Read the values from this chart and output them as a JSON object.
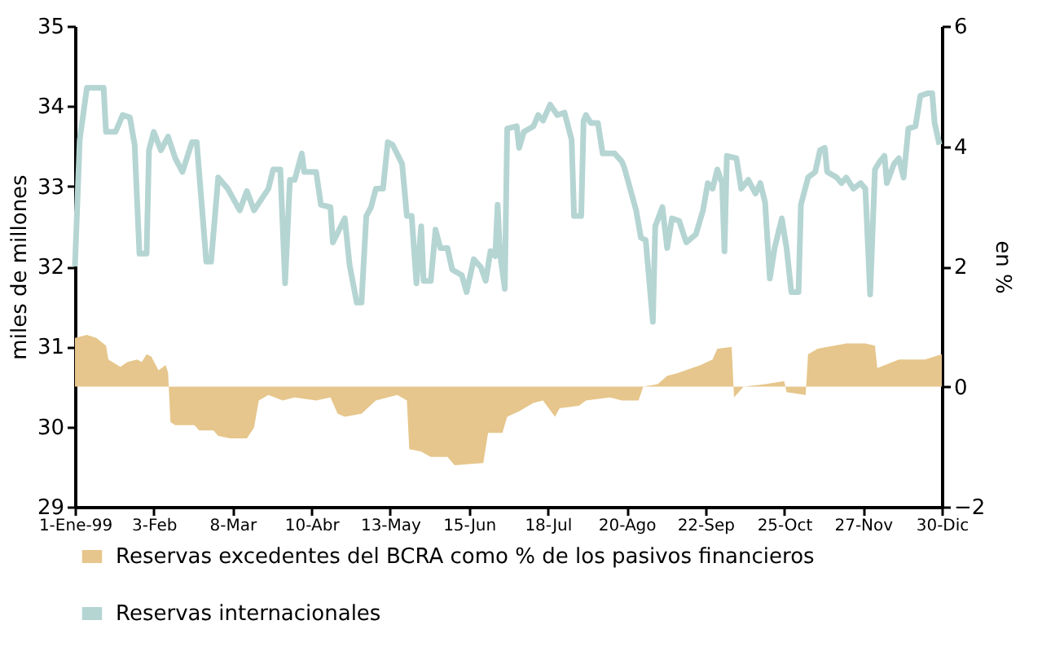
{
  "chart_data": {
    "type": "line",
    "ylabel": "miles de millones",
    "y2label": "en %",
    "legend": "bottom",
    "xlim": [
      "1999-01-01",
      "1999-12-30"
    ],
    "xticks": [
      {
        "value": "1999-01-01",
        "label": "1-Ene-99"
      },
      {
        "value": "1999-02-03",
        "label": "3-Feb"
      },
      {
        "value": "1999-03-08",
        "label": "8-Mar"
      },
      {
        "value": "1999-04-10",
        "label": "10-Abr"
      },
      {
        "value": "1999-05-13",
        "label": "13-May"
      },
      {
        "value": "1999-06-15",
        "label": "15-Jun"
      },
      {
        "value": "1999-07-18",
        "label": "18-Jul"
      },
      {
        "value": "1999-08-20",
        "label": "20-Ago"
      },
      {
        "value": "1999-09-22",
        "label": "22-Sep"
      },
      {
        "value": "1999-10-25",
        "label": "25-Oct"
      },
      {
        "value": "1999-11-27",
        "label": "27-Nov"
      },
      {
        "value": "1999-12-30",
        "label": "30-Dic"
      }
    ],
    "ylim": [
      29,
      35
    ],
    "yticks": [
      29,
      30,
      31,
      32,
      33,
      34,
      35
    ],
    "y2lim": [
      -2,
      6
    ],
    "y2ticks": [
      -2,
      0,
      2,
      4,
      6
    ],
    "series": [
      {
        "name": "Reservas excedentes del BCRA como % de los pasivos financieros",
        "type": "area",
        "axis": "y2",
        "color": "#e6c68c",
        "x": [
          "1999-01-01",
          "1999-01-06",
          "1999-01-10",
          "1999-01-14",
          "1999-01-15",
          "1999-01-20",
          "1999-01-23",
          "1999-01-27",
          "1999-01-29",
          "1999-01-31",
          "1999-02-02",
          "1999-02-05",
          "1999-02-08",
          "1999-02-09",
          "1999-02-10",
          "1999-02-12",
          "1999-02-20",
          "1999-02-22",
          "1999-02-28",
          "1999-03-02",
          "1999-03-07",
          "1999-03-14",
          "1999-03-17",
          "1999-03-19",
          "1999-03-23",
          "1999-03-29",
          "1999-04-03",
          "1999-04-12",
          "1999-04-18",
          "1999-04-21",
          "1999-04-24",
          "1999-05-01",
          "1999-05-07",
          "1999-05-16",
          "1999-05-20",
          "1999-05-21",
          "1999-05-26",
          "1999-05-30",
          "1999-06-06",
          "1999-06-09",
          "1999-06-21",
          "1999-06-23",
          "1999-06-29",
          "1999-07-01",
          "1999-07-06",
          "1999-07-12",
          "1999-07-16",
          "1999-07-21",
          "1999-07-23",
          "1999-07-31",
          "1999-08-03",
          "1999-08-13",
          "1999-08-18",
          "1999-08-25",
          "1999-08-27",
          "1999-09-02",
          "1999-09-06",
          "1999-09-10",
          "1999-09-20",
          "1999-09-25",
          "1999-09-27",
          "1999-10-03",
          "1999-10-04",
          "1999-10-08",
          "1999-10-17",
          "1999-10-25",
          "1999-10-26",
          "1999-11-03",
          "1999-11-04",
          "1999-11-08",
          "1999-11-20",
          "1999-11-28",
          "1999-12-02",
          "1999-12-03",
          "1999-12-12",
          "1999-12-23",
          "1999-12-30"
        ],
        "values": [
          0.81,
          0.86,
          0.81,
          0.68,
          0.45,
          0.33,
          0.41,
          0.45,
          0.41,
          0.54,
          0.5,
          0.27,
          0.36,
          0.23,
          -0.59,
          -0.64,
          -0.64,
          -0.73,
          -0.73,
          -0.82,
          -0.86,
          -0.86,
          -0.68,
          -0.23,
          -0.14,
          -0.23,
          -0.18,
          -0.23,
          -0.18,
          -0.45,
          -0.5,
          -0.45,
          -0.23,
          -0.14,
          -0.23,
          -1.04,
          -1.08,
          -1.17,
          -1.17,
          -1.31,
          -1.27,
          -0.77,
          -0.77,
          -0.5,
          -0.41,
          -0.27,
          -0.23,
          -0.5,
          -0.36,
          -0.32,
          -0.23,
          -0.18,
          -0.23,
          -0.23,
          0.0,
          0.04,
          0.18,
          0.22,
          0.36,
          0.45,
          0.63,
          0.66,
          -0.18,
          0.0,
          0.04,
          0.09,
          -0.09,
          -0.14,
          0.54,
          0.63,
          0.72,
          0.72,
          0.68,
          0.31,
          0.45,
          0.45,
          0.54
        ]
      },
      {
        "name": "Reservas internacionales",
        "type": "line",
        "color": "#b5d5d3",
        "x": [
          "1999-01-01",
          "1999-01-03",
          "1999-01-06",
          "1999-01-13",
          "1999-01-14",
          "1999-01-18",
          "1999-01-21",
          "1999-01-24",
          "1999-01-26",
          "1999-01-28",
          "1999-01-31",
          "1999-02-01",
          "1999-02-03",
          "1999-02-06",
          "1999-02-09",
          "1999-02-12",
          "1999-02-15",
          "1999-02-19",
          "1999-02-21",
          "1999-02-25",
          "1999-02-27",
          "1999-03-02",
          "1999-03-06",
          "1999-03-11",
          "1999-03-14",
          "1999-03-17",
          "1999-03-23",
          "1999-03-25",
          "1999-03-28",
          "1999-03-30",
          "1999-04-01",
          "1999-04-03",
          "1999-04-06",
          "1999-04-07",
          "1999-04-12",
          "1999-04-14",
          "1999-04-18",
          "1999-04-19",
          "1999-04-24",
          "1999-04-26",
          "1999-04-29",
          "1999-05-01",
          "1999-05-03",
          "1999-05-05",
          "1999-05-07",
          "1999-05-10",
          "1999-05-12",
          "1999-05-14",
          "1999-05-18",
          "1999-05-20",
          "1999-05-22",
          "1999-05-24",
          "1999-05-26",
          "1999-05-27",
          "1999-05-30",
          "1999-06-01",
          "1999-06-03",
          "1999-06-06",
          "1999-06-08",
          "1999-06-12",
          "1999-06-14",
          "1999-06-17",
          "1999-06-20",
          "1999-06-22",
          "1999-06-24",
          "1999-06-26",
          "1999-06-27",
          "1999-06-28",
          "1999-06-30",
          "1999-07-01",
          "1999-07-05",
          "1999-07-06",
          "1999-07-08",
          "1999-07-12",
          "1999-07-14",
          "1999-07-16",
          "1999-07-19",
          "1999-07-22",
          "1999-07-25",
          "1999-07-28",
          "1999-07-29",
          "1999-08-01",
          "1999-08-02",
          "1999-08-03",
          "1999-08-05",
          "1999-08-08",
          "1999-08-10",
          "1999-08-15",
          "1999-08-18",
          "1999-08-19",
          "1999-08-24",
          "1999-08-26",
          "1999-08-28",
          "1999-08-31",
          "1999-09-01",
          "1999-09-04",
          "1999-09-06",
          "1999-09-08",
          "1999-09-11",
          "1999-09-14",
          "1999-09-18",
          "1999-09-21",
          "1999-09-23",
          "1999-09-25",
          "1999-09-27",
          "1999-09-29",
          "1999-09-30",
          "1999-10-01",
          "1999-10-05",
          "1999-10-07",
          "1999-10-10",
          "1999-10-13",
          "1999-10-15",
          "1999-10-17",
          "1999-10-19",
          "1999-10-21",
          "1999-10-24",
          "1999-10-26",
          "1999-10-28",
          "1999-10-31",
          "1999-11-01",
          "1999-11-04",
          "1999-11-07",
          "1999-11-09",
          "1999-11-11",
          "1999-11-12",
          "1999-11-16",
          "1999-11-18",
          "1999-11-20",
          "1999-11-23",
          "1999-11-26",
          "1999-11-28",
          "1999-11-30",
          "1999-12-02",
          "1999-12-04",
          "1999-12-06",
          "1999-12-07",
          "1999-12-10",
          "1999-12-12",
          "1999-12-14",
          "1999-12-16",
          "1999-12-19",
          "1999-12-21",
          "1999-12-24",
          "1999-12-26",
          "1999-12-27",
          "1999-12-29"
        ],
        "values": [
          32.0,
          33.58,
          34.23,
          34.23,
          33.68,
          33.68,
          33.89,
          33.86,
          33.52,
          32.16,
          32.16,
          33.45,
          33.68,
          33.45,
          33.62,
          33.35,
          33.18,
          33.55,
          33.55,
          32.06,
          32.06,
          33.11,
          32.97,
          32.7,
          32.94,
          32.7,
          32.97,
          33.21,
          33.21,
          31.79,
          33.08,
          33.08,
          33.41,
          33.18,
          33.18,
          32.77,
          32.74,
          32.3,
          32.6,
          32.02,
          31.55,
          31.55,
          32.63,
          32.74,
          32.97,
          32.97,
          33.55,
          33.52,
          33.28,
          32.63,
          32.63,
          31.79,
          32.5,
          31.82,
          31.82,
          32.46,
          32.23,
          32.23,
          31.96,
          31.89,
          31.68,
          32.09,
          31.99,
          31.82,
          32.19,
          32.13,
          32.77,
          32.16,
          31.72,
          33.72,
          33.75,
          33.48,
          33.68,
          33.75,
          33.89,
          33.82,
          34.02,
          33.89,
          33.92,
          33.58,
          32.63,
          32.63,
          33.82,
          33.89,
          33.79,
          33.79,
          33.41,
          33.41,
          33.31,
          33.24,
          32.7,
          32.36,
          32.33,
          31.31,
          32.5,
          32.74,
          32.23,
          32.6,
          32.57,
          32.3,
          32.4,
          32.7,
          33.04,
          32.97,
          33.21,
          33.04,
          32.19,
          33.38,
          33.35,
          32.97,
          33.08,
          32.91,
          33.04,
          32.8,
          31.85,
          32.23,
          32.6,
          32.23,
          31.68,
          31.68,
          32.77,
          33.11,
          33.18,
          33.45,
          33.48,
          33.18,
          33.11,
          33.04,
          33.11,
          32.97,
          33.04,
          32.97,
          31.65,
          33.21,
          33.31,
          33.38,
          33.04,
          33.28,
          33.35,
          33.11,
          33.72,
          33.75,
          34.13,
          34.16,
          34.16,
          33.79,
          33.52
        ]
      }
    ]
  }
}
